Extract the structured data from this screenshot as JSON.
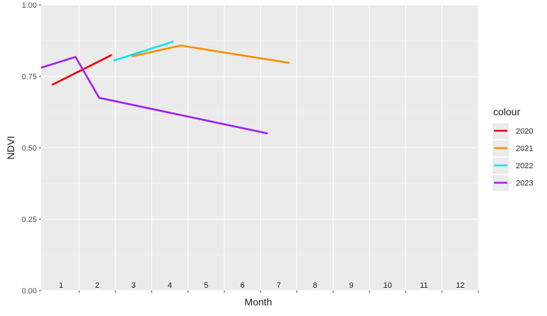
{
  "chart_data": {
    "type": "line",
    "title": "",
    "xlabel": "Month",
    "ylabel": "NDVI",
    "xlim": [
      0.45,
      12.5
    ],
    "ylim": [
      0,
      1
    ],
    "y_ticks": [
      0.0,
      0.25,
      0.5,
      0.75,
      1.0
    ],
    "y_tick_labels": [
      "0.00",
      "0.25",
      "0.50",
      "0.75",
      "1.00"
    ],
    "x_ticks": [
      1,
      2,
      3,
      4,
      5,
      6,
      7,
      8,
      9,
      10,
      11,
      12
    ],
    "x_tick_labels": [
      "1",
      "2",
      "3",
      "4",
      "5",
      "6",
      "7",
      "8",
      "9",
      "10",
      "11",
      "12"
    ],
    "grid": true,
    "legend": {
      "title": "colour",
      "placement": "right"
    },
    "series": [
      {
        "name": "2020",
        "color": "#ee0000",
        "x": [
          0.75,
          2.4
        ],
        "y": [
          0.72,
          0.825
        ]
      },
      {
        "name": "2021",
        "color": "#ff8c00",
        "x": [
          2.95,
          4.3,
          7.3
        ],
        "y": [
          0.82,
          0.858,
          0.797
        ]
      },
      {
        "name": "2022",
        "color": "#00e5ee",
        "x": [
          2.45,
          4.1
        ],
        "y": [
          0.805,
          0.872
        ]
      },
      {
        "name": "2023",
        "color": "#a020f0",
        "x": [
          0.45,
          1.4,
          2.05,
          6.7
        ],
        "y": [
          0.78,
          0.818,
          0.675,
          0.55
        ]
      }
    ]
  }
}
